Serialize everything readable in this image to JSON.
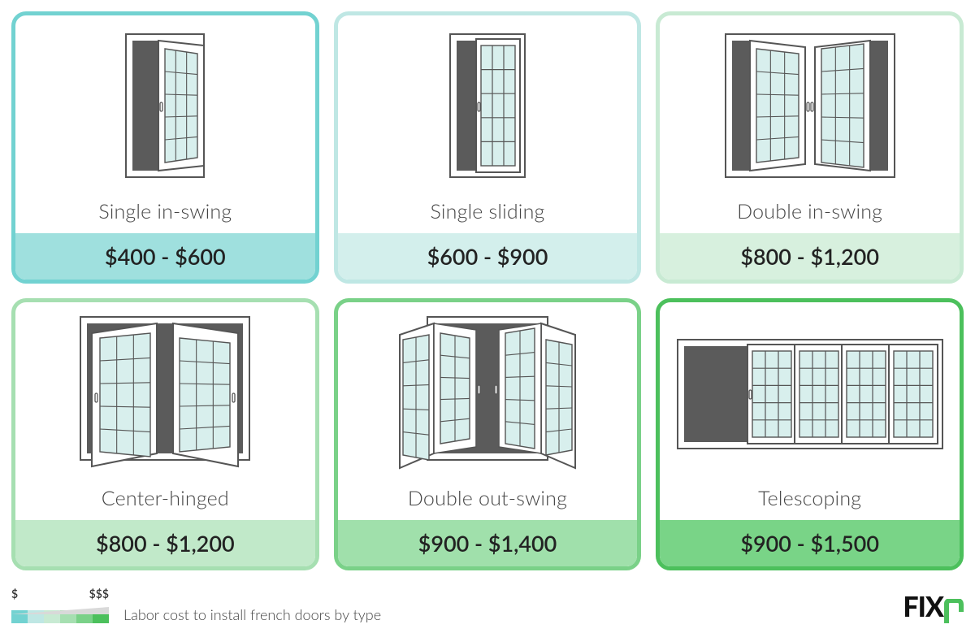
{
  "caption": "Labor cost to install french doors by type",
  "scale_low_label": "$",
  "scale_high_label": "$$$",
  "colors": {
    "pane_fill": "#d8efed",
    "door_stroke": "#555555",
    "opening_fill": "#5b5b5b",
    "scale": [
      "#72d2d1",
      "#bfe7e4",
      "#c8ead3",
      "#a6dfb1",
      "#7ad188",
      "#4cc05c"
    ]
  },
  "logo": {
    "text": "FIX",
    "accent_color": "#4cc05c"
  },
  "items": [
    {
      "label": "Single in-swing",
      "price": "$400 - $600",
      "border": "#72d2d1",
      "price_bg": "#9fe0de",
      "icon": "single-in"
    },
    {
      "label": "Single sliding",
      "price": "$600 - $900",
      "border": "#bfe7e4",
      "price_bg": "#d3efec",
      "icon": "single-slide"
    },
    {
      "label": "Double in-swing",
      "price": "$800 - $1,200",
      "border": "#c8ead3",
      "price_bg": "#d7f0de",
      "icon": "double-in"
    },
    {
      "label": "Center-hinged",
      "price": "$800 - $1,200",
      "border": "#a6dfb1",
      "price_bg": "#c1e9c9",
      "icon": "center-hinged"
    },
    {
      "label": "Double out-swing",
      "price": "$900 - $1,400",
      "border": "#7ad188",
      "price_bg": "#a0e0ab",
      "icon": "double-out"
    },
    {
      "label": "Telescoping",
      "price": "$900 - $1,500",
      "border": "#4cc05c",
      "price_bg": "#79d487",
      "icon": "telescoping"
    }
  ]
}
